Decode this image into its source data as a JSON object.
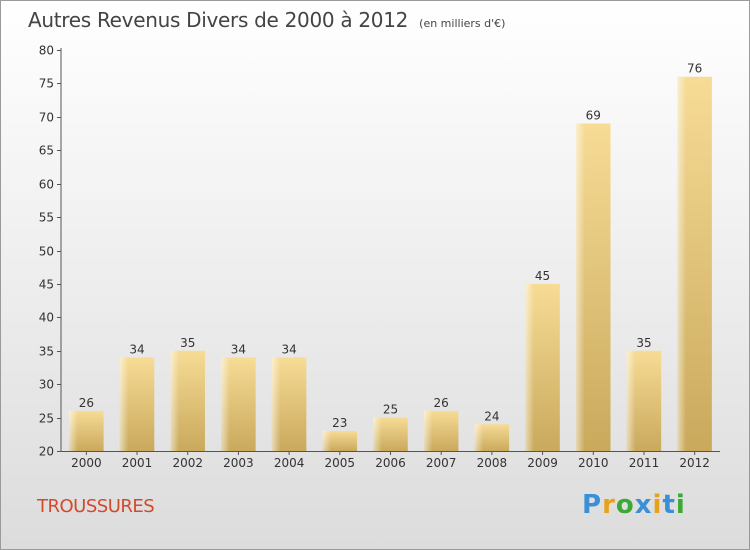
{
  "header": {
    "title": "Autres Revenus Divers de 2000 à 2012",
    "subtitle": "(en milliers d'€)"
  },
  "footer": {
    "commune": "TROUSSURES",
    "logo_letters": [
      "P",
      "r",
      "o",
      "x",
      "i",
      "t",
      "i"
    ],
    "logo_colors": [
      "#3a8fd6",
      "#e7a21b",
      "#3aa935",
      "#3a8fd6",
      "#e7a21b",
      "#3a8fd6",
      "#3aa935"
    ]
  },
  "chart_data": {
    "type": "bar",
    "categories": [
      "2000",
      "2001",
      "2002",
      "2003",
      "2004",
      "2005",
      "2006",
      "2007",
      "2008",
      "2009",
      "2010",
      "2011",
      "2012"
    ],
    "values": [
      26,
      34,
      35,
      34,
      34,
      23,
      25,
      26,
      24,
      45,
      69,
      35,
      76
    ],
    "ylim": [
      20,
      80
    ],
    "yticks": [
      20,
      25,
      30,
      35,
      40,
      45,
      50,
      55,
      60,
      65,
      70,
      75,
      80
    ],
    "grid": false,
    "bar_color": "#e3c47a"
  }
}
